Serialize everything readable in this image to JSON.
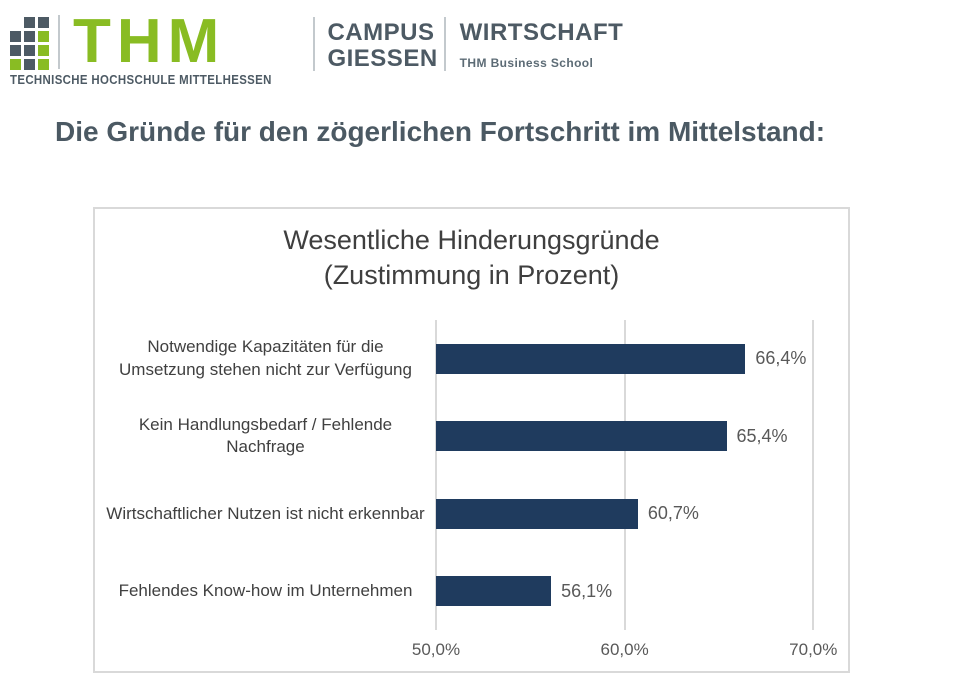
{
  "logo": {
    "acronym": "THM",
    "university_name": "TECHNISCHE HOCHSCHULE MITTELHESSEN",
    "campus_line1": "CAMPUS",
    "campus_line2": "GIESSEN",
    "division": "WIRTSCHAFT",
    "division_subtitle": "THM Business School",
    "grid_pattern": [
      [
        "empty",
        "dark",
        "dark"
      ],
      [
        "dark",
        "dark",
        "green"
      ],
      [
        "dark",
        "dark",
        "green"
      ],
      [
        "green",
        "dark",
        "green"
      ]
    ],
    "colors": {
      "green": "#89BC23",
      "slate": "#4D5A64"
    }
  },
  "headline": "Die Gründe für den zögerlichen Fortschritt im Mittelstand:",
  "chart_data": {
    "type": "bar",
    "orientation": "horizontal",
    "title": "Wesentliche Hinderungsgründe",
    "subtitle": "(Zustimmung in Prozent)",
    "categories": [
      "Notwendige Kapazitäten für die Umsetzung stehen nicht zur Verfügung",
      "Kein Handlungsbedarf / Fehlende Nachfrage",
      "Wirtschaftlicher Nutzen ist nicht erkennbar",
      "Fehlendes Know-how im Unternehmen"
    ],
    "values": [
      66.4,
      65.4,
      60.7,
      56.1
    ],
    "value_labels": [
      "66,4%",
      "65,4%",
      "60,7%",
      "56,1%"
    ],
    "x_ticks": [
      {
        "value": 50,
        "label": "50,0%"
      },
      {
        "value": 60,
        "label": "60,0%"
      },
      {
        "value": 70,
        "label": "70,0%"
      }
    ],
    "xlim": [
      50,
      72
    ],
    "grid": true,
    "legend": "none",
    "bar_color": "#1F3B5E",
    "gridline_color": "#D9D9D9",
    "text_color": "#404040"
  }
}
